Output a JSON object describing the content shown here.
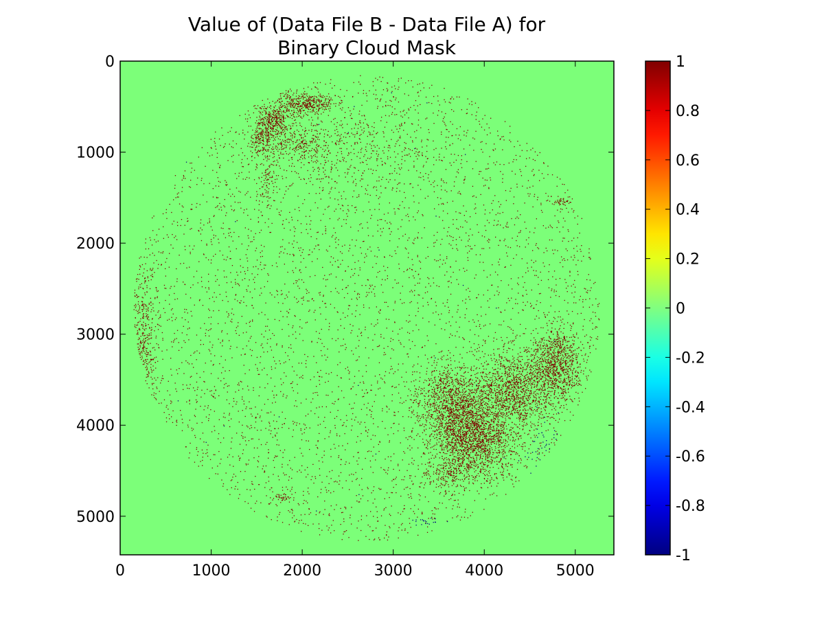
{
  "chart_data": {
    "type": "heatmap",
    "title_lines": [
      "Value of (Data File B - Data File A) for",
      "Binary Cloud Mask"
    ],
    "xlabel": "",
    "ylabel": "",
    "xlim": [
      0,
      5424
    ],
    "ylim": [
      5424,
      0
    ],
    "x_ticks": [
      0,
      1000,
      2000,
      3000,
      4000,
      5000
    ],
    "y_ticks": [
      0,
      1000,
      2000,
      3000,
      4000,
      5000
    ],
    "x_tick_labels": [
      "0",
      "1000",
      "2000",
      "3000",
      "4000",
      "5000"
    ],
    "y_tick_labels": [
      "0",
      "1000",
      "2000",
      "3000",
      "4000",
      "5000"
    ],
    "background_value": 0,
    "disk": {
      "center": [
        2712,
        2712
      ],
      "radius": 2560
    },
    "colorbar": {
      "colormap": "jet",
      "range": [
        -1,
        1
      ],
      "ticks": [
        1,
        0.8,
        0.6,
        0.4,
        0.2,
        0,
        -0.2,
        -0.4,
        -0.6,
        -0.8,
        -1
      ],
      "tick_labels": [
        "1",
        "0.8",
        "0.6",
        "0.4",
        "0.2",
        "0",
        "-0.2",
        "-0.4",
        "-0.6",
        "-0.8",
        "-1"
      ]
    },
    "value_colors": {
      "-1": "#00007f",
      "0": "#7cff79",
      "1": "#7f0000"
    },
    "regions": [
      {
        "value": 1,
        "center": [
          3900,
          4150
        ],
        "spread": [
          230,
          220
        ],
        "count": 1500
      },
      {
        "value": 1,
        "center": [
          3750,
          3850
        ],
        "spread": [
          180,
          240
        ],
        "count": 900
      },
      {
        "value": 1,
        "center": [
          4300,
          3650
        ],
        "spread": [
          220,
          200
        ],
        "count": 800
      },
      {
        "value": 1,
        "center": [
          4800,
          3300
        ],
        "spread": [
          120,
          200
        ],
        "count": 700
      },
      {
        "value": 1,
        "center": [
          4500,
          3500
        ],
        "spread": [
          300,
          200
        ],
        "count": 500
      },
      {
        "value": 1,
        "center": [
          3500,
          3700
        ],
        "spread": [
          150,
          200
        ],
        "count": 350
      },
      {
        "value": 1,
        "center": [
          2050,
          470
        ],
        "spread": [
          150,
          60
        ],
        "count": 380
      },
      {
        "value": 1,
        "center": [
          1680,
          650
        ],
        "spread": [
          100,
          90
        ],
        "count": 350
      },
      {
        "value": 1,
        "center": [
          1550,
          860
        ],
        "spread": [
          60,
          100
        ],
        "count": 150
      },
      {
        "value": 1,
        "center": [
          1900,
          900
        ],
        "spread": [
          200,
          120
        ],
        "count": 250
      },
      {
        "value": 1,
        "center": [
          2600,
          950
        ],
        "spread": [
          450,
          200
        ],
        "count": 300
      },
      {
        "value": 1,
        "center": [
          1620,
          1300
        ],
        "spread": [
          50,
          150
        ],
        "count": 80
      },
      {
        "value": 1,
        "center": [
          250,
          3000
        ],
        "spread": [
          80,
          400
        ],
        "count": 280
      },
      {
        "value": 1,
        "center": [
          4850,
          1550
        ],
        "spread": [
          60,
          20
        ],
        "count": 40
      },
      {
        "value": 1,
        "center": [
          1780,
          4800
        ],
        "spread": [
          60,
          25
        ],
        "count": 40
      },
      {
        "value": 1,
        "center": [
          3600,
          4550
        ],
        "spread": [
          150,
          80
        ],
        "count": 150
      },
      {
        "value": -1,
        "center": [
          4650,
          4250
        ],
        "spread": [
          90,
          160
        ],
        "count": 40
      },
      {
        "value": -1,
        "center": [
          3350,
          5060
        ],
        "spread": [
          90,
          20
        ],
        "count": 20
      }
    ],
    "scatter": [
      {
        "value": 1,
        "region": "disk",
        "count": 4500
      },
      {
        "value": -1,
        "region": "disk",
        "count": 25
      }
    ]
  }
}
